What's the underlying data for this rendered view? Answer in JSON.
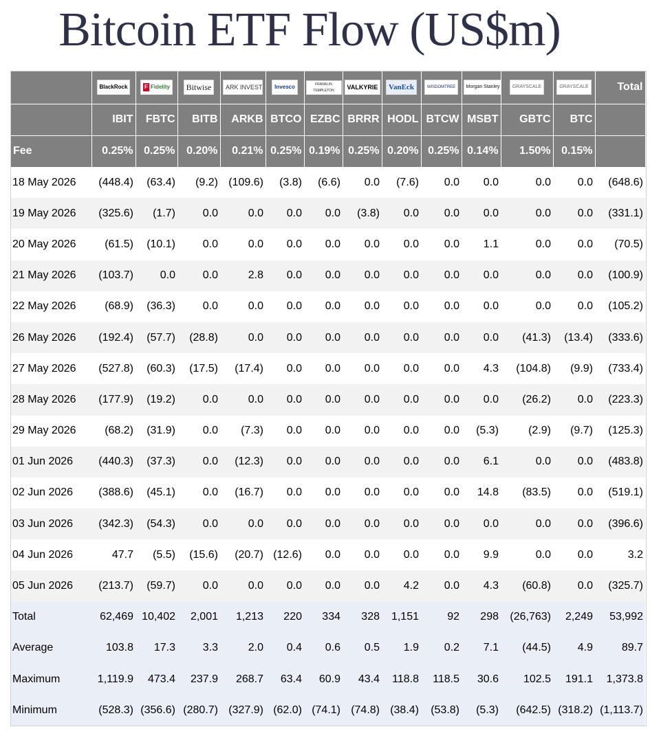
{
  "title": "Bitcoin ETF Flow (US$m)",
  "logos": {
    "blackrock": "BlackRock",
    "fidelity": "Fidelity",
    "bitwise": "Bitwise",
    "ark": "ARK INVEST",
    "invesco": "Invesco",
    "franklin": "FRANKLIN TEMPLETON",
    "valkyrie": "VALKYRIE",
    "vaneck": "VanEck",
    "wisdomtree": "WISDOMTREE",
    "morgan": "Morgan Stanley",
    "grayscale1": "GRAYSCALE",
    "grayscale2": "GRAYSCALE"
  },
  "total_header": "Total",
  "tickers": [
    "IBIT",
    "FBTC",
    "BITB",
    "ARKB",
    "BTCO",
    "EZBC",
    "BRRR",
    "HODL",
    "BTCW",
    "MSBT",
    "GBTC",
    "BTC"
  ],
  "fee_label": "Fee",
  "fees": [
    "0.25%",
    "0.25%",
    "0.20%",
    "0.21%",
    "0.25%",
    "0.19%",
    "0.25%",
    "0.20%",
    "0.25%",
    "0.14%",
    "1.50%",
    "0.15%"
  ],
  "rows": [
    {
      "date": "18 May 2026",
      "values": [
        "(448.4)",
        "(63.4)",
        "(9.2)",
        "(109.6)",
        "(3.8)",
        "(6.6)",
        "0.0",
        "(7.6)",
        "0.0",
        "0.0",
        "0.0",
        "0.0"
      ],
      "total": "(648.6)"
    },
    {
      "date": "19 May 2026",
      "values": [
        "(325.6)",
        "(1.7)",
        "0.0",
        "0.0",
        "0.0",
        "0.0",
        "(3.8)",
        "0.0",
        "0.0",
        "0.0",
        "0.0",
        "0.0"
      ],
      "total": "(331.1)"
    },
    {
      "date": "20 May 2026",
      "values": [
        "(61.5)",
        "(10.1)",
        "0.0",
        "0.0",
        "0.0",
        "0.0",
        "0.0",
        "0.0",
        "0.0",
        "1.1",
        "0.0",
        "0.0"
      ],
      "total": "(70.5)"
    },
    {
      "date": "21 May 2026",
      "values": [
        "(103.7)",
        "0.0",
        "0.0",
        "2.8",
        "0.0",
        "0.0",
        "0.0",
        "0.0",
        "0.0",
        "0.0",
        "0.0",
        "0.0"
      ],
      "total": "(100.9)"
    },
    {
      "date": "22 May 2026",
      "values": [
        "(68.9)",
        "(36.3)",
        "0.0",
        "0.0",
        "0.0",
        "0.0",
        "0.0",
        "0.0",
        "0.0",
        "0.0",
        "0.0",
        "0.0"
      ],
      "total": "(105.2)"
    },
    {
      "date": "26 May 2026",
      "values": [
        "(192.4)",
        "(57.7)",
        "(28.8)",
        "0.0",
        "0.0",
        "0.0",
        "0.0",
        "0.0",
        "0.0",
        "0.0",
        "(41.3)",
        "(13.4)"
      ],
      "total": "(333.6)"
    },
    {
      "date": "27 May 2026",
      "values": [
        "(527.8)",
        "(60.3)",
        "(17.5)",
        "(17.4)",
        "0.0",
        "0.0",
        "0.0",
        "0.0",
        "0.0",
        "4.3",
        "(104.8)",
        "(9.9)"
      ],
      "total": "(733.4)"
    },
    {
      "date": "28 May 2026",
      "values": [
        "(177.9)",
        "(19.2)",
        "0.0",
        "0.0",
        "0.0",
        "0.0",
        "0.0",
        "0.0",
        "0.0",
        "0.0",
        "(26.2)",
        "0.0"
      ],
      "total": "(223.3)"
    },
    {
      "date": "29 May 2026",
      "values": [
        "(68.2)",
        "(31.9)",
        "0.0",
        "(7.3)",
        "0.0",
        "0.0",
        "0.0",
        "0.0",
        "0.0",
        "(5.3)",
        "(2.9)",
        "(9.7)"
      ],
      "total": "(125.3)"
    },
    {
      "date": "01 Jun 2026",
      "values": [
        "(440.3)",
        "(37.3)",
        "0.0",
        "(12.3)",
        "0.0",
        "0.0",
        "0.0",
        "0.0",
        "0.0",
        "6.1",
        "0.0",
        "0.0"
      ],
      "total": "(483.8)"
    },
    {
      "date": "02 Jun 2026",
      "values": [
        "(388.6)",
        "(45.1)",
        "0.0",
        "(16.7)",
        "0.0",
        "0.0",
        "0.0",
        "0.0",
        "0.0",
        "14.8",
        "(83.5)",
        "0.0"
      ],
      "total": "(519.1)"
    },
    {
      "date": "03 Jun 2026",
      "values": [
        "(342.3)",
        "(54.3)",
        "0.0",
        "0.0",
        "0.0",
        "0.0",
        "0.0",
        "0.0",
        "0.0",
        "0.0",
        "0.0",
        "0.0"
      ],
      "total": "(396.6)"
    },
    {
      "date": "04 Jun 2026",
      "values": [
        "47.7",
        "(5.5)",
        "(15.6)",
        "(20.7)",
        "(12.6)",
        "0.0",
        "0.0",
        "0.0",
        "0.0",
        "9.9",
        "0.0",
        "0.0"
      ],
      "total": "3.2"
    },
    {
      "date": "05 Jun 2026",
      "values": [
        "(213.7)",
        "(59.7)",
        "0.0",
        "0.0",
        "0.0",
        "0.0",
        "0.0",
        "4.2",
        "0.0",
        "4.3",
        "(60.8)",
        "0.0"
      ],
      "total": "(325.7)"
    }
  ],
  "summary": [
    {
      "label": "Total",
      "values": [
        "62,469",
        "10,402",
        "2,001",
        "1,213",
        "220",
        "334",
        "328",
        "1,151",
        "92",
        "298",
        "(26,763)",
        "2,249"
      ],
      "total": "53,992"
    },
    {
      "label": "Average",
      "values": [
        "103.8",
        "17.3",
        "3.3",
        "2.0",
        "0.4",
        "0.6",
        "0.5",
        "1.9",
        "0.2",
        "7.1",
        "(44.5)",
        "4.9"
      ],
      "total": "89.7"
    },
    {
      "label": "Maximum",
      "values": [
        "1,119.9",
        "473.4",
        "237.9",
        "268.7",
        "63.4",
        "60.9",
        "43.4",
        "118.8",
        "118.5",
        "30.6",
        "102.5",
        "191.1"
      ],
      "total": "1,373.8"
    },
    {
      "label": "Minimum",
      "values": [
        "(528.3)",
        "(356.6)",
        "(280.7)",
        "(327.9)",
        "(62.0)",
        "(74.1)",
        "(74.8)",
        "(38.4)",
        "(53.8)",
        "(5.3)",
        "(642.5)",
        "(318.2)"
      ],
      "total": "(1,113.7)"
    }
  ],
  "colors": {
    "header_bg": "#808080",
    "negative": "#e01010",
    "zero": "#c8c8c8",
    "summary_bg": "#eaeef7",
    "stripe": "#f2f2f2",
    "title": "#2e3147"
  }
}
